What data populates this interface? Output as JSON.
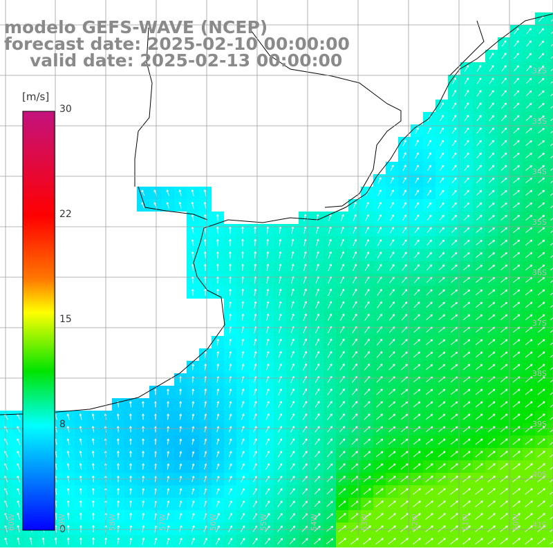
{
  "title": {
    "line1": "modelo GEFS-WAVE (NCEP)",
    "line2": "forecast date: 2025-02-10 00:00:00",
    "line3": "valid date: 2025-02-13 00:00:00"
  },
  "colorbar": {
    "unit": "[m/s]",
    "min": 0,
    "max": 30,
    "ticks": [
      "30",
      "22",
      "15",
      "8",
      "0"
    ],
    "colors": [
      "#c3127e",
      "#ff0000",
      "#ff6a00",
      "#ffff00",
      "#00e400",
      "#00ffff",
      "#0000ff"
    ]
  },
  "map": {
    "lon_range": [
      -60,
      -49
    ],
    "lat_range": [
      -42,
      -31.8
    ],
    "lat_labels": [
      "32S",
      "33S",
      "34S",
      "35S",
      "36S",
      "37S",
      "38S",
      "39S",
      "40S",
      "41S"
    ],
    "lon_labels": [
      "60W",
      "59W",
      "58W",
      "57W",
      "56W",
      "55W",
      "54W",
      "53W",
      "52W",
      "51W",
      "50W"
    ],
    "wind_direction": "northeast / north (arrows pointing up-right)"
  }
}
